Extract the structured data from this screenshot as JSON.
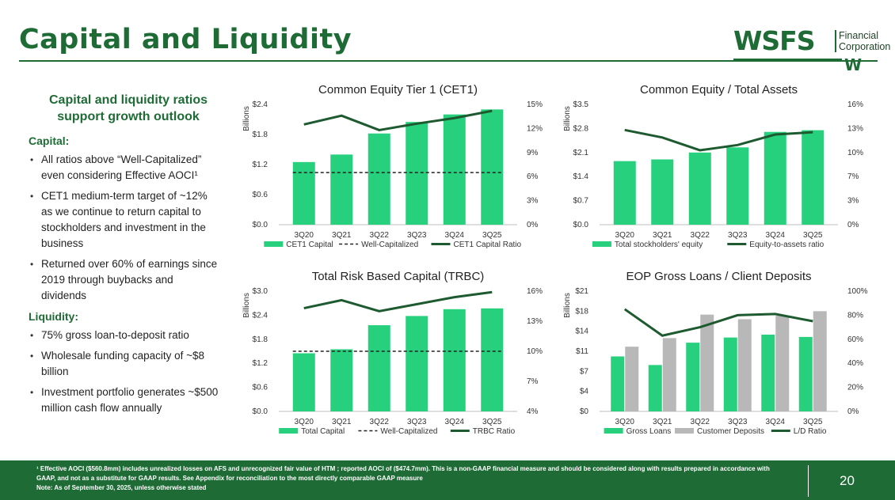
{
  "page_title": "Capital and Liquidity",
  "logo": {
    "wordmark": "WSFS",
    "line1": "Financial",
    "line2": "Corporation",
    "mark": "W",
    "color": "#1e6b35"
  },
  "left_panel": {
    "heading": "Capital and liquidity ratios support growth outlook",
    "capital_label": "Capital:",
    "capital_items": [
      "All ratios above “Well-Capitalized” even considering Effective AOCI¹",
      "CET1 medium-term target of ~12% as we continue to return capital to stockholders and investment in the business",
      "Returned over 60% of earnings since 2019 through buybacks and dividends"
    ],
    "liquidity_label": "Liquidity:",
    "liquidity_items": [
      "75% gross loan-to-deposit ratio",
      "Wholesale funding capacity of ~$8 billion",
      "Investment portfolio generates ~$500 million cash flow annually"
    ]
  },
  "colors": {
    "bar_green": "#26d07c",
    "line_green": "#1e5a30",
    "bar_gray": "#b8b8b8",
    "brand": "#1e6b35"
  },
  "chart_data": [
    {
      "type": "bar",
      "title": "Common Equity Tier 1 (CET1)",
      "categories": [
        "3Q20",
        "3Q21",
        "3Q22",
        "3Q23",
        "3Q24",
        "3Q25"
      ],
      "ylabel": "Billions",
      "ylim": [
        0,
        2.4
      ],
      "yticks": [
        "$0.0",
        "$0.6",
        "$1.2",
        "$1.8",
        "$2.4"
      ],
      "y2lim": [
        0,
        15
      ],
      "y2ticks": [
        "0%",
        "3%",
        "6%",
        "9%",
        "12%",
        "15%"
      ],
      "series": [
        {
          "name": "CET1 Capital",
          "kind": "bar",
          "values": [
            1.25,
            1.4,
            1.82,
            2.05,
            2.2,
            2.3
          ]
        },
        {
          "name": "Well-Capitalized",
          "kind": "dashed",
          "axis": "right",
          "values": [
            6.5,
            6.5,
            6.5,
            6.5,
            6.5,
            6.5
          ]
        },
        {
          "name": "CET1 Capital Ratio",
          "kind": "line",
          "axis": "right",
          "values": [
            12.5,
            13.6,
            11.8,
            12.6,
            13.3,
            14.2
          ]
        }
      ]
    },
    {
      "type": "bar",
      "title": "Common Equity / Total Assets",
      "categories": [
        "3Q20",
        "3Q21",
        "3Q22",
        "3Q23",
        "3Q24",
        "3Q25"
      ],
      "ylabel": "Billions",
      "ylim": [
        0,
        3.5
      ],
      "yticks": [
        "$0.0",
        "$0.7",
        "$1.4",
        "$2.1",
        "$2.8",
        "$3.5"
      ],
      "y2lim": [
        0,
        16
      ],
      "y2ticks": [
        "0%",
        "3%",
        "7%",
        "10%",
        "13%",
        "16%"
      ],
      "series": [
        {
          "name": "Total stockholders' equity",
          "kind": "bar",
          "values": [
            1.85,
            1.9,
            2.1,
            2.25,
            2.7,
            2.75
          ]
        },
        {
          "name": "Equity-to-assets ratio",
          "kind": "line",
          "axis": "right",
          "values": [
            12.6,
            11.6,
            9.9,
            10.6,
            12.0,
            12.3
          ]
        }
      ]
    },
    {
      "type": "bar",
      "title": "Total Risk Based Capital (TRBC)",
      "categories": [
        "3Q20",
        "3Q21",
        "3Q22",
        "3Q23",
        "3Q24",
        "3Q25"
      ],
      "ylabel": "Billions",
      "ylim": [
        0,
        3.0
      ],
      "yticks": [
        "$0.0",
        "$0.6",
        "$1.2",
        "$1.8",
        "$2.4",
        "$3.0"
      ],
      "y2lim": [
        4,
        16
      ],
      "y2ticks": [
        "4%",
        "7%",
        "10%",
        "13%",
        "16%"
      ],
      "series": [
        {
          "name": "Total Capital",
          "kind": "bar",
          "values": [
            1.45,
            1.55,
            2.15,
            2.38,
            2.55,
            2.57
          ]
        },
        {
          "name": "Well-Capitalized",
          "kind": "dashed",
          "axis": "right",
          "values": [
            10,
            10,
            10,
            10,
            10,
            10
          ]
        },
        {
          "name": "TRBC Ratio",
          "kind": "line",
          "axis": "right",
          "values": [
            14.3,
            15.1,
            14.0,
            14.7,
            15.4,
            15.9
          ]
        }
      ]
    },
    {
      "type": "bar",
      "title": "EOP Gross Loans / Client Deposits",
      "categories": [
        "3Q20",
        "3Q21",
        "3Q22",
        "3Q23",
        "3Q24",
        "3Q25"
      ],
      "ylabel": "Billions",
      "ylim": [
        0,
        21
      ],
      "yticks": [
        "$0",
        "$4",
        "$7",
        "$11",
        "$14",
        "$18",
        "$21"
      ],
      "y2lim": [
        0,
        100
      ],
      "y2ticks": [
        "0%",
        "20%",
        "40%",
        "60%",
        "80%",
        "100%"
      ],
      "series": [
        {
          "name": "Gross Loans",
          "kind": "bar",
          "values": [
            9.6,
            8.1,
            12.0,
            12.9,
            13.4,
            13.0
          ]
        },
        {
          "name": "Customer Deposits",
          "kind": "bar2",
          "values": [
            11.3,
            12.8,
            16.9,
            16.1,
            16.7,
            17.5
          ]
        },
        {
          "name": "L/D Ratio",
          "kind": "line",
          "axis": "right",
          "values": [
            85,
            63,
            70,
            80,
            81,
            75
          ]
        }
      ]
    }
  ],
  "footer": {
    "note1": "¹ Effective AOCI ($560.8mm) includes unrealized losses on AFS and unrecognized fair value of HTM ; reported AOCI of ($474.7mm). This is a non-GAAP financial measure and should be considered along with results prepared in accordance with GAAP, and not as a substitute for GAAP results. See Appendix for reconciliation to the most directly comparable GAAP measure",
    "note2": "Note: As of September 30, 2025, unless otherwise stated",
    "page_number": "20"
  }
}
